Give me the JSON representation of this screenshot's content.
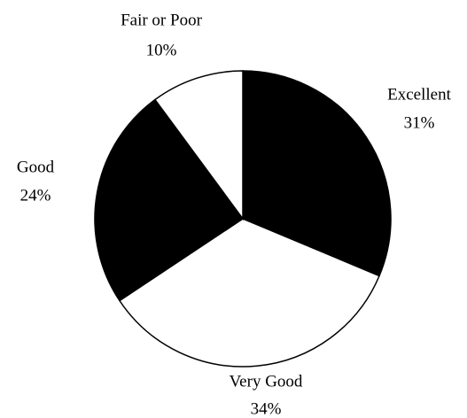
{
  "chart_data": {
    "type": "pie",
    "categories": [
      "Excellent",
      "Very Good",
      "Good",
      "Fair or Poor"
    ],
    "values": [
      31,
      34,
      24,
      10
    ],
    "value_labels": [
      "31%",
      "34%",
      "24%",
      "10%"
    ],
    "colors": [
      "#000000",
      "#ffffff",
      "#000000",
      "#ffffff"
    ]
  }
}
